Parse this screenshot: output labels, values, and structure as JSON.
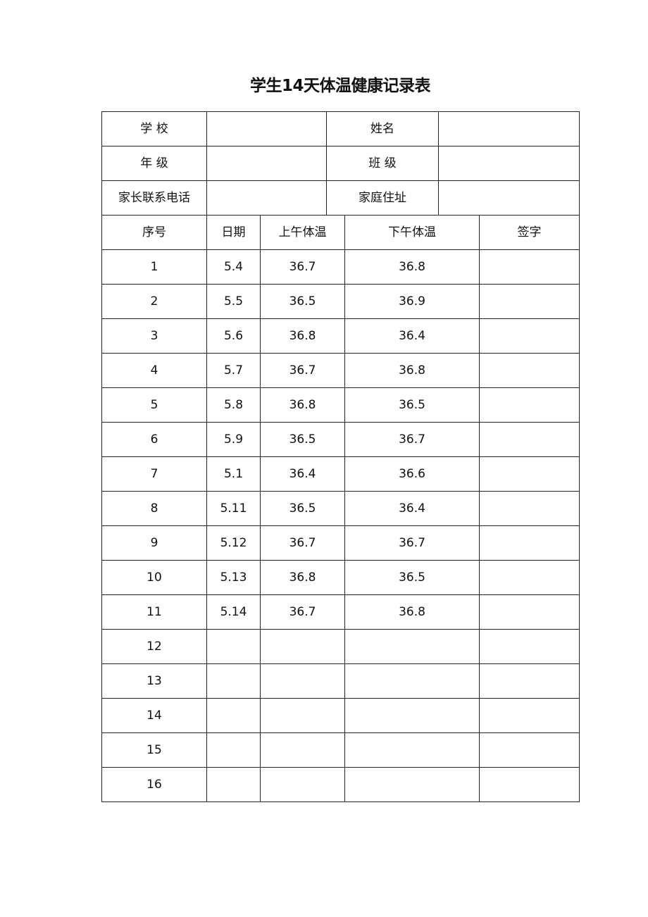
{
  "title": "学生14天体温健康记录表",
  "info": {
    "school_label": "学 校",
    "school_value": "",
    "name_label": "姓名",
    "name_value": "",
    "grade_label": "年 级",
    "grade_value": "",
    "class_label": "班 级",
    "class_value": "",
    "phone_label": "家长联系电话",
    "phone_value": "",
    "address_label": "家庭住址",
    "address_value": ""
  },
  "records": {
    "headers": [
      "序号",
      "日期",
      "上午体温",
      "下午体温",
      "签字"
    ],
    "rows": [
      [
        "1",
        "5.4",
        "36.7",
        "36.8",
        ""
      ],
      [
        "2",
        "5.5",
        "36.5",
        "36.9",
        ""
      ],
      [
        "3",
        "5.6",
        "36.8",
        "36.4",
        ""
      ],
      [
        "4",
        "5.7",
        "36.7",
        "36.8",
        ""
      ],
      [
        "5",
        "5.8",
        "36.8",
        "36.5",
        ""
      ],
      [
        "6",
        "5.9",
        "36.5",
        "36.7",
        ""
      ],
      [
        "7",
        "5.1",
        "36.4",
        "36.6",
        ""
      ],
      [
        "8",
        "5.11",
        "36.5",
        "36.4",
        ""
      ],
      [
        "9",
        "5.12",
        "36.7",
        "36.7",
        ""
      ],
      [
        "10",
        "5.13",
        "36.8",
        "36.5",
        ""
      ],
      [
        "11",
        "5.14",
        "36.7",
        "36.8",
        ""
      ],
      [
        "12",
        "",
        "",
        "",
        ""
      ],
      [
        "13",
        "",
        "",
        "",
        ""
      ],
      [
        "14",
        "",
        "",
        "",
        ""
      ],
      [
        "15",
        "",
        "",
        "",
        ""
      ],
      [
        "16",
        "",
        "",
        "",
        ""
      ]
    ]
  }
}
